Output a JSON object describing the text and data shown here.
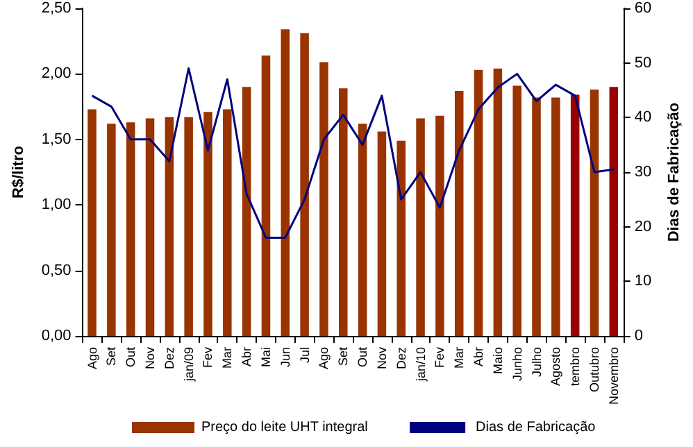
{
  "chart_data": {
    "type": "bar",
    "ylabel": "R$/litro",
    "y2label": "Dias de Fabricação",
    "categories": [
      "Ago",
      "Set",
      "Out",
      "Nov",
      "Dez",
      "jan/09",
      "Fev",
      "Mar",
      "Abr",
      "Mai",
      "Jun",
      "Jul",
      "Ago",
      "Set",
      "Out",
      "Nov",
      "Dez",
      "jan/10",
      "Fev",
      "Mar",
      "Abr",
      "Maio",
      "Junho",
      "Julho",
      "Agosto",
      "tembro",
      "Outubro",
      "Novembro"
    ],
    "series": [
      {
        "name": "Preço do leite UHT integral",
        "color": "#993300",
        "colors": [
          "#993300",
          "#993300",
          "#993300",
          "#993300",
          "#993300",
          "#993300",
          "#993300",
          "#993300",
          "#993300",
          "#993300",
          "#993300",
          "#993300",
          "#993300",
          "#993300",
          "#993300",
          "#993300",
          "#993300",
          "#993300",
          "#993300",
          "#993300",
          "#993300",
          "#993300",
          "#993300",
          "#993300",
          "#993300",
          "#990000",
          "#993300",
          "#990000"
        ],
        "values": [
          1.73,
          1.62,
          1.63,
          1.66,
          1.67,
          1.67,
          1.71,
          1.73,
          1.9,
          2.14,
          2.34,
          2.31,
          2.09,
          1.89,
          1.62,
          1.56,
          1.49,
          1.66,
          1.68,
          1.87,
          2.03,
          2.04,
          1.91,
          1.82,
          1.82,
          1.84,
          1.88,
          1.9
        ]
      },
      {
        "name": "Dias de Fabricação",
        "type": "line",
        "axis": "y2",
        "color": "#000080",
        "values": [
          44,
          42,
          36,
          36,
          32,
          49,
          34,
          47,
          26,
          18,
          18,
          25,
          36,
          40.5,
          35,
          44,
          25,
          30,
          23.5,
          34,
          41.5,
          45.5,
          48,
          43,
          46,
          44,
          30,
          30.5
        ]
      }
    ],
    "ylim": [
      0,
      2.5
    ],
    "yticks": [
      {
        "value": 0,
        "label": "0,00"
      },
      {
        "value": 0.5,
        "label": "0,50"
      },
      {
        "value": 1,
        "label": "1,00"
      },
      {
        "value": 1.5,
        "label": "1,50"
      },
      {
        "value": 2,
        "label": "2,00"
      },
      {
        "value": 2.5,
        "label": "2,50"
      }
    ],
    "y2lim": [
      0,
      60
    ],
    "y2ticks": [
      0,
      10,
      20,
      30,
      40,
      50,
      60
    ],
    "grid": false,
    "legend": "bottom",
    "marker": "none",
    "line_style": "solid"
  }
}
